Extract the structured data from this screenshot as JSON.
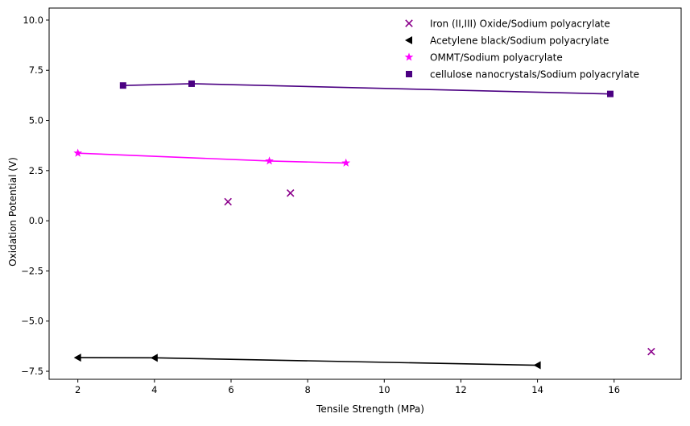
{
  "chart_data": {
    "type": "scatter",
    "title": "",
    "xlabel": "Tensile Strength (MPa)",
    "ylabel": "Oxidation Potential (V)",
    "xlim": [
      1.25,
      17.75
    ],
    "ylim": [
      -7.9,
      10.6
    ],
    "xticks": [
      2,
      4,
      6,
      8,
      10,
      12,
      14,
      16
    ],
    "yticks": [
      -7.5,
      -5.0,
      -2.5,
      0.0,
      2.5,
      5.0,
      7.5,
      10.0
    ],
    "xtick_labels": [
      "2",
      "4",
      "6",
      "8",
      "10",
      "12",
      "14",
      "16"
    ],
    "ytick_labels": [
      "−7.5",
      "−5.0",
      "−2.5",
      "0.0",
      "2.5",
      "5.0",
      "7.5",
      "10.0"
    ],
    "grid": false,
    "legend_position": "top-right",
    "series": [
      {
        "name": "Iron (II,III) Oxide/Sodium polyacrylate",
        "marker": "x",
        "color": "#8B008B",
        "line": false,
        "points": [
          [
            5.92,
            0.95
          ],
          [
            7.55,
            1.38
          ],
          [
            16.97,
            -6.52
          ]
        ]
      },
      {
        "name": "Acetylene black/Sodium polyacrylate",
        "marker": "triangle-left",
        "color": "#000000",
        "line": true,
        "points": [
          [
            2.0,
            -6.82
          ],
          [
            4.0,
            -6.83
          ],
          [
            14.0,
            -7.2
          ]
        ]
      },
      {
        "name": "OMMT/Sodium polyacrylate",
        "marker": "star",
        "color": "#FF00FF",
        "line": true,
        "points": [
          [
            2.0,
            3.37
          ],
          [
            7.0,
            2.98
          ],
          [
            9.0,
            2.88
          ]
        ]
      },
      {
        "name": "cellulose nanocrystals/Sodium polyacrylate",
        "marker": "square",
        "color": "#4B0082",
        "line": true,
        "points": [
          [
            3.18,
            6.74
          ],
          [
            4.97,
            6.83
          ],
          [
            15.9,
            6.32
          ]
        ]
      }
    ]
  }
}
